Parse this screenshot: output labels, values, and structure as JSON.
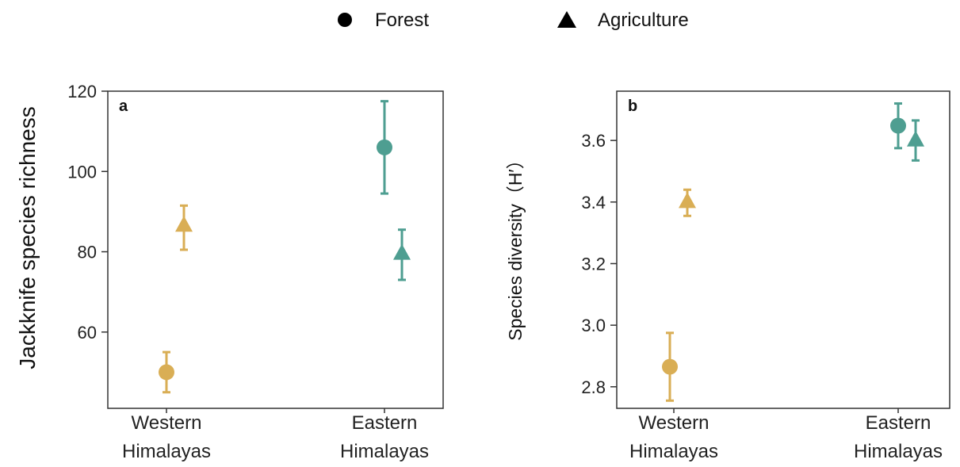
{
  "legend": {
    "forest_label": "Forest",
    "agriculture_label": "Agriculture"
  },
  "colors": {
    "western": "#D9AE55",
    "eastern": "#4E9E91",
    "axis": "#333333"
  },
  "chart_data": [
    {
      "type": "scatter",
      "panel": "a",
      "ylabel": "Jackknife species richness",
      "categories": [
        "Western Himalayas",
        "Eastern Himalayas"
      ],
      "category_lines": [
        [
          "Western",
          "Himalayas"
        ],
        [
          "Eastern",
          "Himalayas"
        ]
      ],
      "ylim": [
        41,
        120
      ],
      "yticks": [
        60,
        80,
        100,
        120
      ],
      "ytick_labels": [
        "60",
        "80",
        "100",
        "120"
      ],
      "points": [
        {
          "region": "Western Himalayas",
          "landuse": "Forest",
          "value": 50,
          "lower": 45,
          "upper": 55
        },
        {
          "region": "Western Himalayas",
          "landuse": "Agriculture",
          "value": 86.5,
          "lower": 80.5,
          "upper": 91.5
        },
        {
          "region": "Eastern Himalayas",
          "landuse": "Forest",
          "value": 106,
          "lower": 94.5,
          "upper": 117.5
        },
        {
          "region": "Eastern Himalayas",
          "landuse": "Agriculture",
          "value": 79.5,
          "lower": 73,
          "upper": 85.5
        }
      ]
    },
    {
      "type": "scatter",
      "panel": "b",
      "ylabel": "Species diversity（H′）",
      "categories": [
        "Western Himalayas",
        "Eastern Himalayas"
      ],
      "category_lines": [
        [
          "Western",
          "Himalayas"
        ],
        [
          "Eastern",
          "Himalayas"
        ]
      ],
      "ylim": [
        2.73,
        3.76
      ],
      "yticks": [
        2.8,
        3.0,
        3.2,
        3.4,
        3.6
      ],
      "ytick_labels": [
        "2.8",
        "3.0",
        "3.2",
        "3.4",
        "3.6"
      ],
      "points": [
        {
          "region": "Western Himalayas",
          "landuse": "Forest",
          "value": 2.865,
          "lower": 2.755,
          "upper": 2.975
        },
        {
          "region": "Western Himalayas",
          "landuse": "Agriculture",
          "value": 3.4,
          "lower": 3.355,
          "upper": 3.44
        },
        {
          "region": "Eastern Himalayas",
          "landuse": "Forest",
          "value": 3.648,
          "lower": 3.575,
          "upper": 3.72
        },
        {
          "region": "Eastern Himalayas",
          "landuse": "Agriculture",
          "value": 3.6,
          "lower": 3.535,
          "upper": 3.665
        }
      ]
    }
  ]
}
